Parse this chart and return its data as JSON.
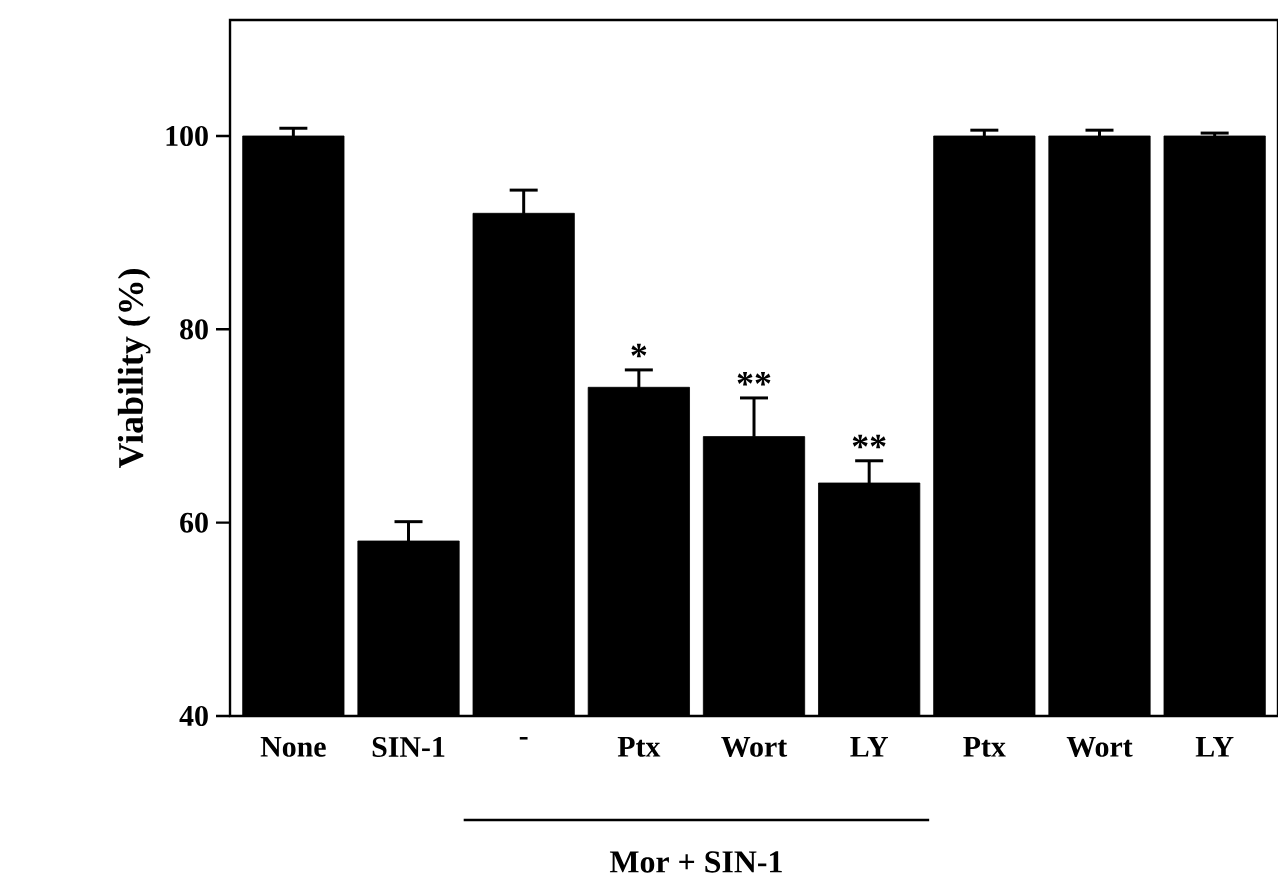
{
  "chart_data": {
    "type": "bar",
    "ylabel": "Viability (%)",
    "categories": [
      "None",
      "SIN-1",
      "-",
      "Ptx",
      "Wort",
      "LY",
      "Ptx",
      "Wort",
      "LY"
    ],
    "values": [
      100,
      58.1,
      92.0,
      74.0,
      68.9,
      64.1,
      100,
      100,
      100
    ],
    "errors": [
      0.8,
      2.0,
      2.4,
      1.8,
      4.0,
      2.3,
      0.6,
      0.6,
      0.3
    ],
    "value_labels": [
      null,
      null,
      null,
      "*",
      "**",
      "**",
      null,
      null,
      null
    ],
    "color": "#000000",
    "ylim": [
      40,
      112
    ],
    "yticks": [
      40,
      60,
      80,
      100
    ],
    "annotations": [
      "Mor + SIN-1"
    ],
    "grid": false
  }
}
